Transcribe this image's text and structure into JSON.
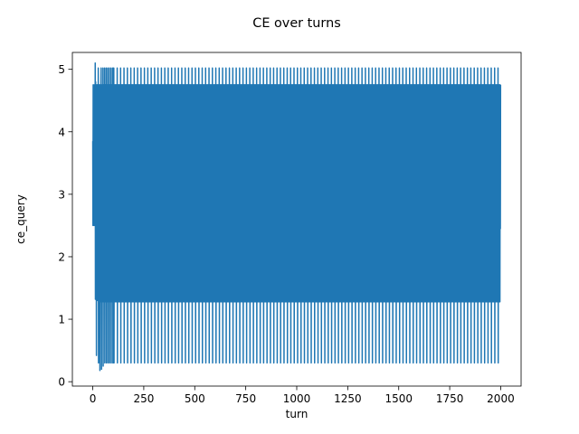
{
  "chart_data": {
    "type": "line",
    "title": "CE over turns",
    "xlabel": "turn",
    "ylabel": "ce_query",
    "xlim": [
      -100,
      2100
    ],
    "ylim": [
      -0.07,
      5.27
    ],
    "xticks": [
      0,
      250,
      500,
      750,
      1000,
      1250,
      1500,
      1750,
      2000
    ],
    "yticks": [
      0,
      1,
      2,
      3,
      4,
      5
    ],
    "grid": false,
    "legend": "none",
    "series": [
      {
        "color": "#1f77b4",
        "x": [
          0,
          1,
          2,
          3,
          4,
          5,
          6,
          7,
          8,
          9,
          10,
          11,
          12,
          13,
          14,
          15,
          16,
          17,
          18,
          19,
          20,
          21,
          22,
          23,
          24,
          25,
          26,
          27,
          28,
          29,
          30,
          31,
          32,
          33,
          34,
          35,
          36,
          37,
          38,
          39,
          40,
          41,
          42,
          43,
          44,
          45,
          46,
          47,
          48,
          49,
          50,
          51,
          52,
          53,
          54,
          55,
          56,
          57,
          58,
          59,
          60,
          61,
          62,
          63,
          64,
          65,
          66,
          67,
          68,
          69,
          70,
          71,
          72,
          73,
          74,
          75,
          76,
          77,
          78,
          79,
          80,
          81,
          82,
          83,
          84,
          85,
          86,
          87,
          88,
          89,
          90,
          91,
          92,
          93,
          94,
          95,
          96,
          97,
          98,
          99,
          100
        ],
        "y": [
          3.85,
          2.5,
          4.75,
          2.55,
          4.7,
          2.5,
          4.75,
          2.55,
          4.7,
          2.5,
          4.75,
          2.55,
          5.1,
          1.32,
          4.8,
          2.5,
          4.75,
          2.5,
          0.42,
          4.75,
          2.5,
          4.75,
          1.3,
          4.75,
          2.5,
          4.75,
          2.5,
          5.02,
          0.3,
          4.75,
          2.45,
          4.75,
          1.28,
          4.75,
          2.45,
          0.18,
          4.75,
          2.45,
          4.75,
          1.28,
          4.75,
          5.02,
          2.45,
          0.2,
          4.75,
          2.45,
          4.75,
          1.28,
          4.75,
          2.45,
          5.02,
          0.25,
          4.75,
          2.45,
          4.75,
          1.28,
          4.75,
          2.45,
          5.02,
          0.3,
          4.75,
          2.45,
          4.75,
          1.28,
          4.75,
          2.45,
          5.02,
          0.3,
          4.75,
          2.45,
          4.75,
          1.28,
          4.75,
          2.45,
          5.02,
          0.3,
          4.75,
          2.45,
          4.75,
          1.28,
          4.75,
          2.45,
          5.02,
          0.3,
          4.75,
          2.45,
          4.75,
          1.28,
          4.75,
          2.45,
          5.02,
          0.3,
          4.75,
          2.45,
          4.75,
          1.28,
          4.75,
          2.45,
          5.02,
          0.3,
          4.75
        ],
        "repeat": {
          "period": 16.67,
          "until": 2000,
          "cycle": [
            4.75,
            2.45,
            5.02,
            0.3,
            4.75,
            2.45,
            4.75,
            1.28,
            4.75,
            2.45,
            4.75,
            1.28,
            4.75,
            2.45,
            4.75,
            1.28
          ]
        }
      }
    ]
  }
}
